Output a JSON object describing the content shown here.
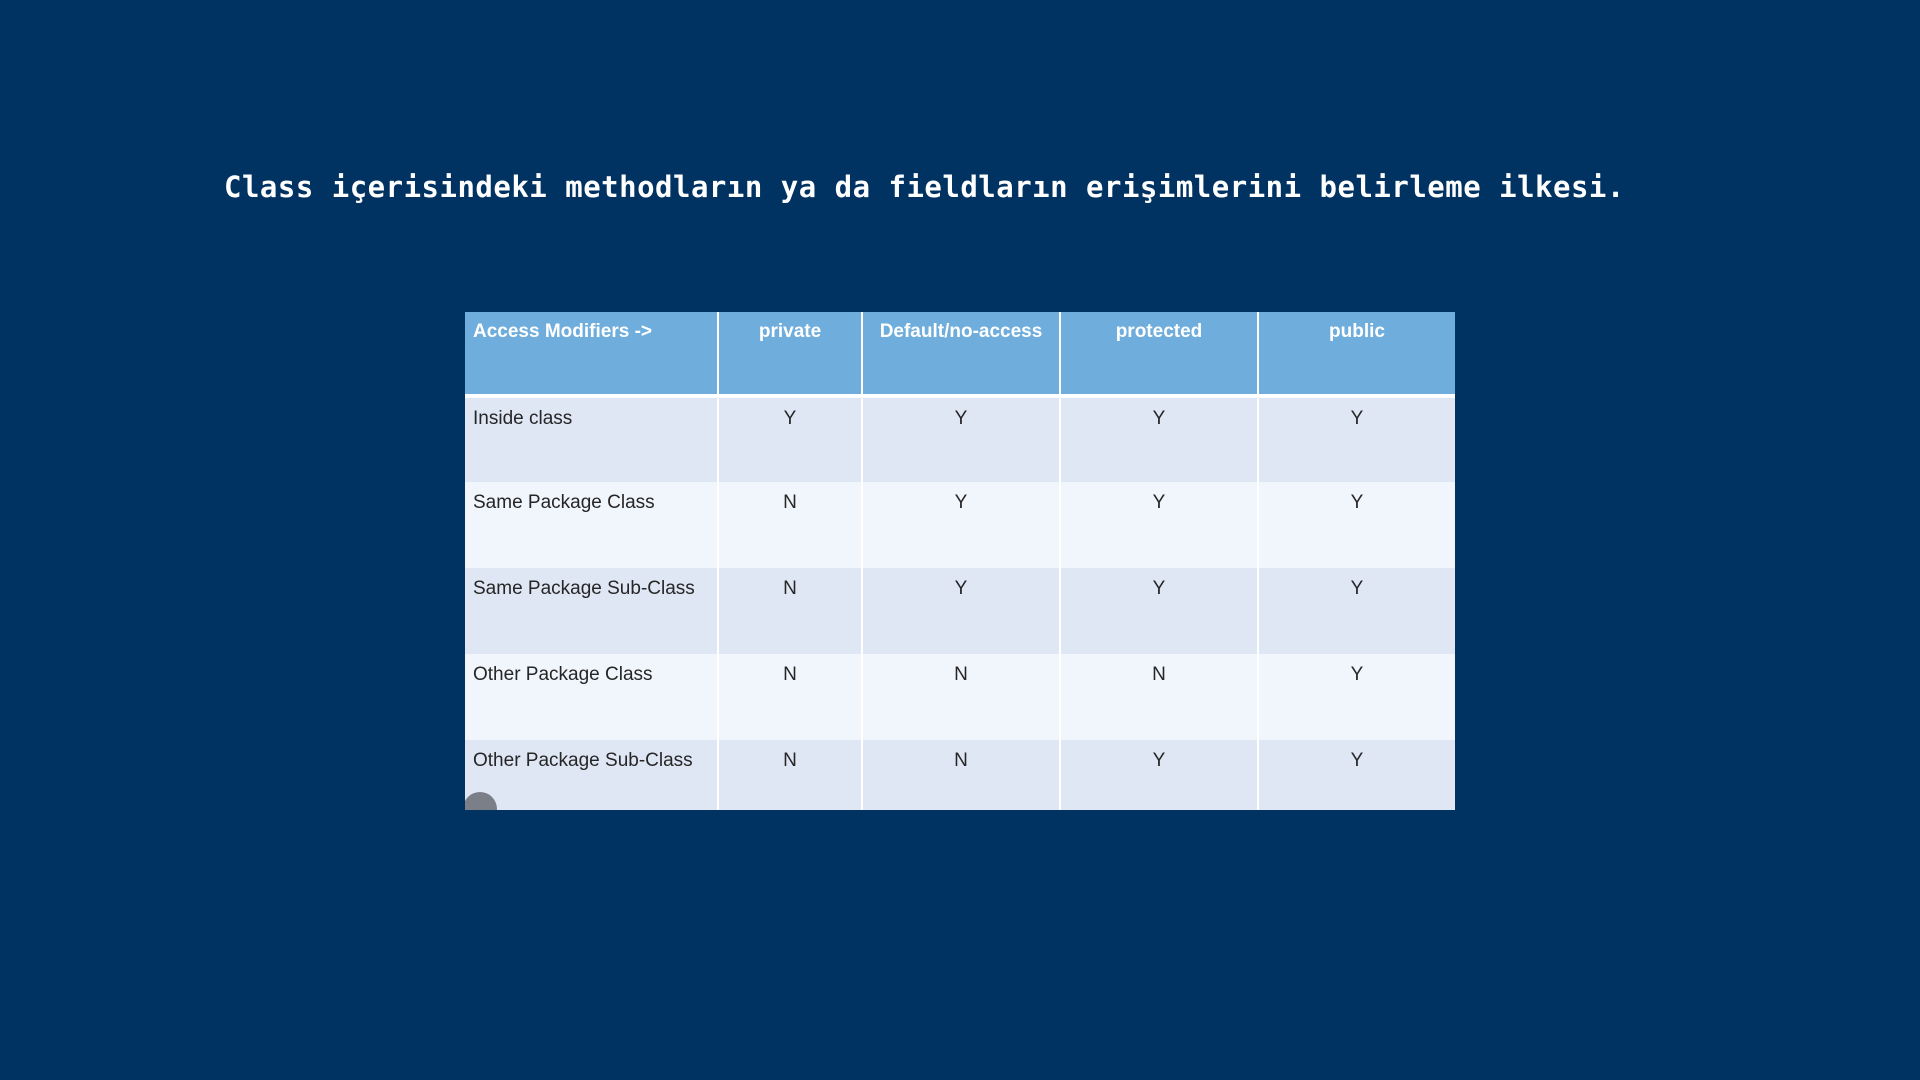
{
  "heading": "Class içerisindeki methodların ya da fieldların erişimlerini belirleme ilkesi.",
  "table": {
    "headers": [
      "Access Modifiers ->",
      "private",
      "Default/no-access",
      "protected",
      "public"
    ],
    "rows": [
      [
        "Inside class",
        "Y",
        "Y",
        "Y",
        "Y"
      ],
      [
        "Same Package Class",
        "N",
        "Y",
        "Y",
        "Y"
      ],
      [
        "Same Package Sub-Class",
        "N",
        "Y",
        "Y",
        "Y"
      ],
      [
        "Other Package Class",
        "N",
        "N",
        "N",
        "Y"
      ],
      [
        "Other Package Sub-Class",
        "N",
        "N",
        "Y",
        "Y"
      ]
    ]
  },
  "colors": {
    "background": "#003262",
    "header_fill": "#6eaddc",
    "row_band_dark": "#dfe7f5",
    "row_band_light": "#f1f5fc"
  }
}
